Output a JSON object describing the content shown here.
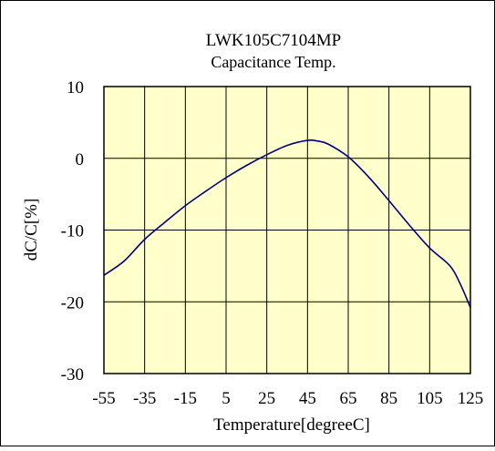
{
  "chart_data": {
    "type": "line",
    "title": "LWK105C7104MP",
    "subtitle": "Capacitance Temp.",
    "xlabel": "Temperature[degreeC]",
    "ylabel": "dC/C[%]",
    "xlim": [
      -55,
      125
    ],
    "ylim": [
      -30,
      10
    ],
    "x_ticks": [
      -55,
      -35,
      -15,
      5,
      25,
      45,
      65,
      85,
      105,
      125
    ],
    "y_ticks": [
      -30,
      -20,
      -10,
      0,
      10
    ],
    "x_tick_labels": [
      "-55",
      "-35",
      "-15",
      "5",
      "25",
      "45",
      "65",
      "85",
      "105",
      "125"
    ],
    "y_tick_labels": [
      "-30",
      "-20",
      "-10",
      "0",
      "10"
    ],
    "grid": true,
    "colors": {
      "plot_background": "#ffffcc",
      "line": "#000080",
      "grid": "#000000"
    },
    "series": [
      {
        "x": [
          -55,
          -45,
          -35,
          -25,
          -15,
          -5,
          5,
          15,
          25,
          35,
          45,
          50,
          55,
          65,
          75,
          85,
          95,
          105,
          115,
          120,
          125
        ],
        "y": [
          -16.3,
          -14.3,
          -11.3,
          -8.9,
          -6.6,
          -4.6,
          -2.7,
          -1.0,
          0.5,
          1.8,
          2.5,
          2.4,
          2.0,
          0.2,
          -2.6,
          -5.9,
          -9.3,
          -12.5,
          -15.0,
          -17.5,
          -20.8
        ]
      }
    ]
  }
}
